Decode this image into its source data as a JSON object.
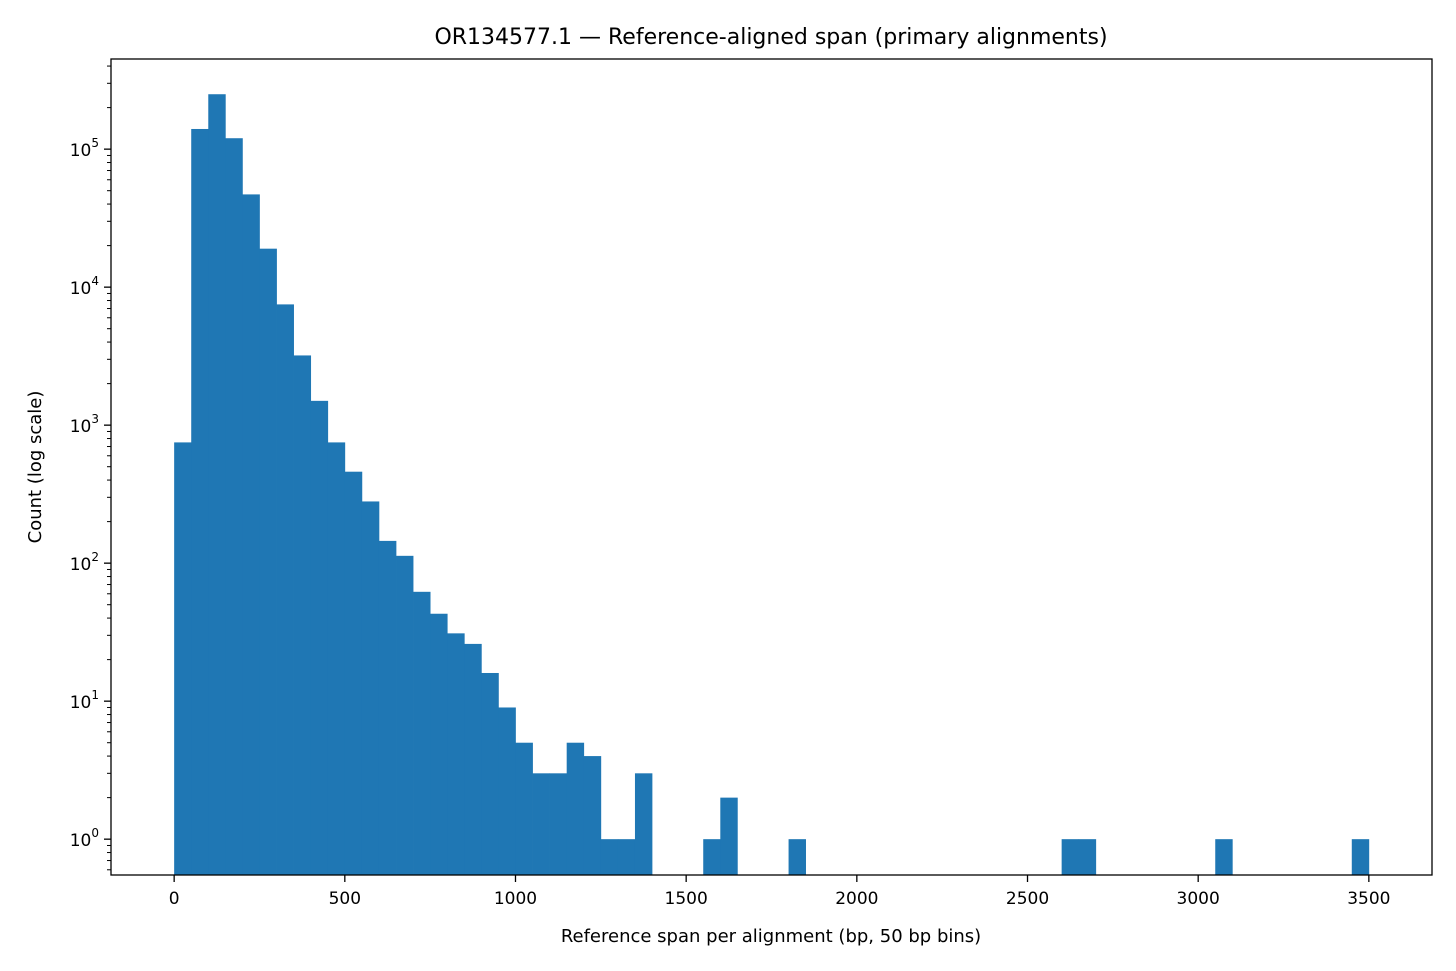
{
  "chart_data": {
    "type": "bar",
    "title": "OR134577.1 — Reference-aligned span (primary alignments)",
    "xlabel": "Reference span per alignment (bp, 50 bp bins)",
    "ylabel": "Count (log scale)",
    "xlim": [
      -185,
      3685
    ],
    "ylim": [
      0.55,
      450000
    ],
    "yscale": "log",
    "bin_width": 50,
    "xticks": [
      0,
      500,
      1000,
      1500,
      2000,
      2500,
      3000,
      3500
    ],
    "xtick_labels": [
      "0",
      "500",
      "1000",
      "1500",
      "2000",
      "2500",
      "3000",
      "3500"
    ],
    "yticks": [
      1,
      10,
      100,
      1000,
      10000,
      100000
    ],
    "ytick_bases": [
      "10",
      "10",
      "10",
      "10",
      "10",
      "10"
    ],
    "ytick_exponents": [
      "0",
      "1",
      "2",
      "3",
      "4",
      "5"
    ],
    "grid": false,
    "color": "#1f77b4",
    "bins": [
      {
        "x0": 0,
        "x1": 50,
        "count": 750
      },
      {
        "x0": 50,
        "x1": 100,
        "count": 140000
      },
      {
        "x0": 100,
        "x1": 150,
        "count": 250000
      },
      {
        "x0": 150,
        "x1": 200,
        "count": 120000
      },
      {
        "x0": 200,
        "x1": 250,
        "count": 47000
      },
      {
        "x0": 250,
        "x1": 300,
        "count": 19000
      },
      {
        "x0": 300,
        "x1": 350,
        "count": 7500
      },
      {
        "x0": 350,
        "x1": 400,
        "count": 3200
      },
      {
        "x0": 400,
        "x1": 450,
        "count": 1500
      },
      {
        "x0": 450,
        "x1": 500,
        "count": 750
      },
      {
        "x0": 500,
        "x1": 550,
        "count": 460
      },
      {
        "x0": 550,
        "x1": 600,
        "count": 280
      },
      {
        "x0": 600,
        "x1": 650,
        "count": 145
      },
      {
        "x0": 650,
        "x1": 700,
        "count": 113
      },
      {
        "x0": 700,
        "x1": 750,
        "count": 62
      },
      {
        "x0": 750,
        "x1": 800,
        "count": 43
      },
      {
        "x0": 800,
        "x1": 850,
        "count": 31
      },
      {
        "x0": 850,
        "x1": 900,
        "count": 26
      },
      {
        "x0": 900,
        "x1": 950,
        "count": 16
      },
      {
        "x0": 950,
        "x1": 1000,
        "count": 9
      },
      {
        "x0": 1000,
        "x1": 1050,
        "count": 5
      },
      {
        "x0": 1050,
        "x1": 1100,
        "count": 3
      },
      {
        "x0": 1100,
        "x1": 1150,
        "count": 3
      },
      {
        "x0": 1150,
        "x1": 1200,
        "count": 5
      },
      {
        "x0": 1200,
        "x1": 1250,
        "count": 4
      },
      {
        "x0": 1250,
        "x1": 1300,
        "count": 1
      },
      {
        "x0": 1300,
        "x1": 1350,
        "count": 1
      },
      {
        "x0": 1350,
        "x1": 1400,
        "count": 3
      },
      {
        "x0": 1550,
        "x1": 1600,
        "count": 1
      },
      {
        "x0": 1600,
        "x1": 1650,
        "count": 2
      },
      {
        "x0": 1800,
        "x1": 1850,
        "count": 1
      },
      {
        "x0": 2600,
        "x1": 2650,
        "count": 1
      },
      {
        "x0": 2650,
        "x1": 2700,
        "count": 1
      },
      {
        "x0": 3050,
        "x1": 3100,
        "count": 1
      },
      {
        "x0": 3450,
        "x1": 3500,
        "count": 1
      }
    ]
  }
}
